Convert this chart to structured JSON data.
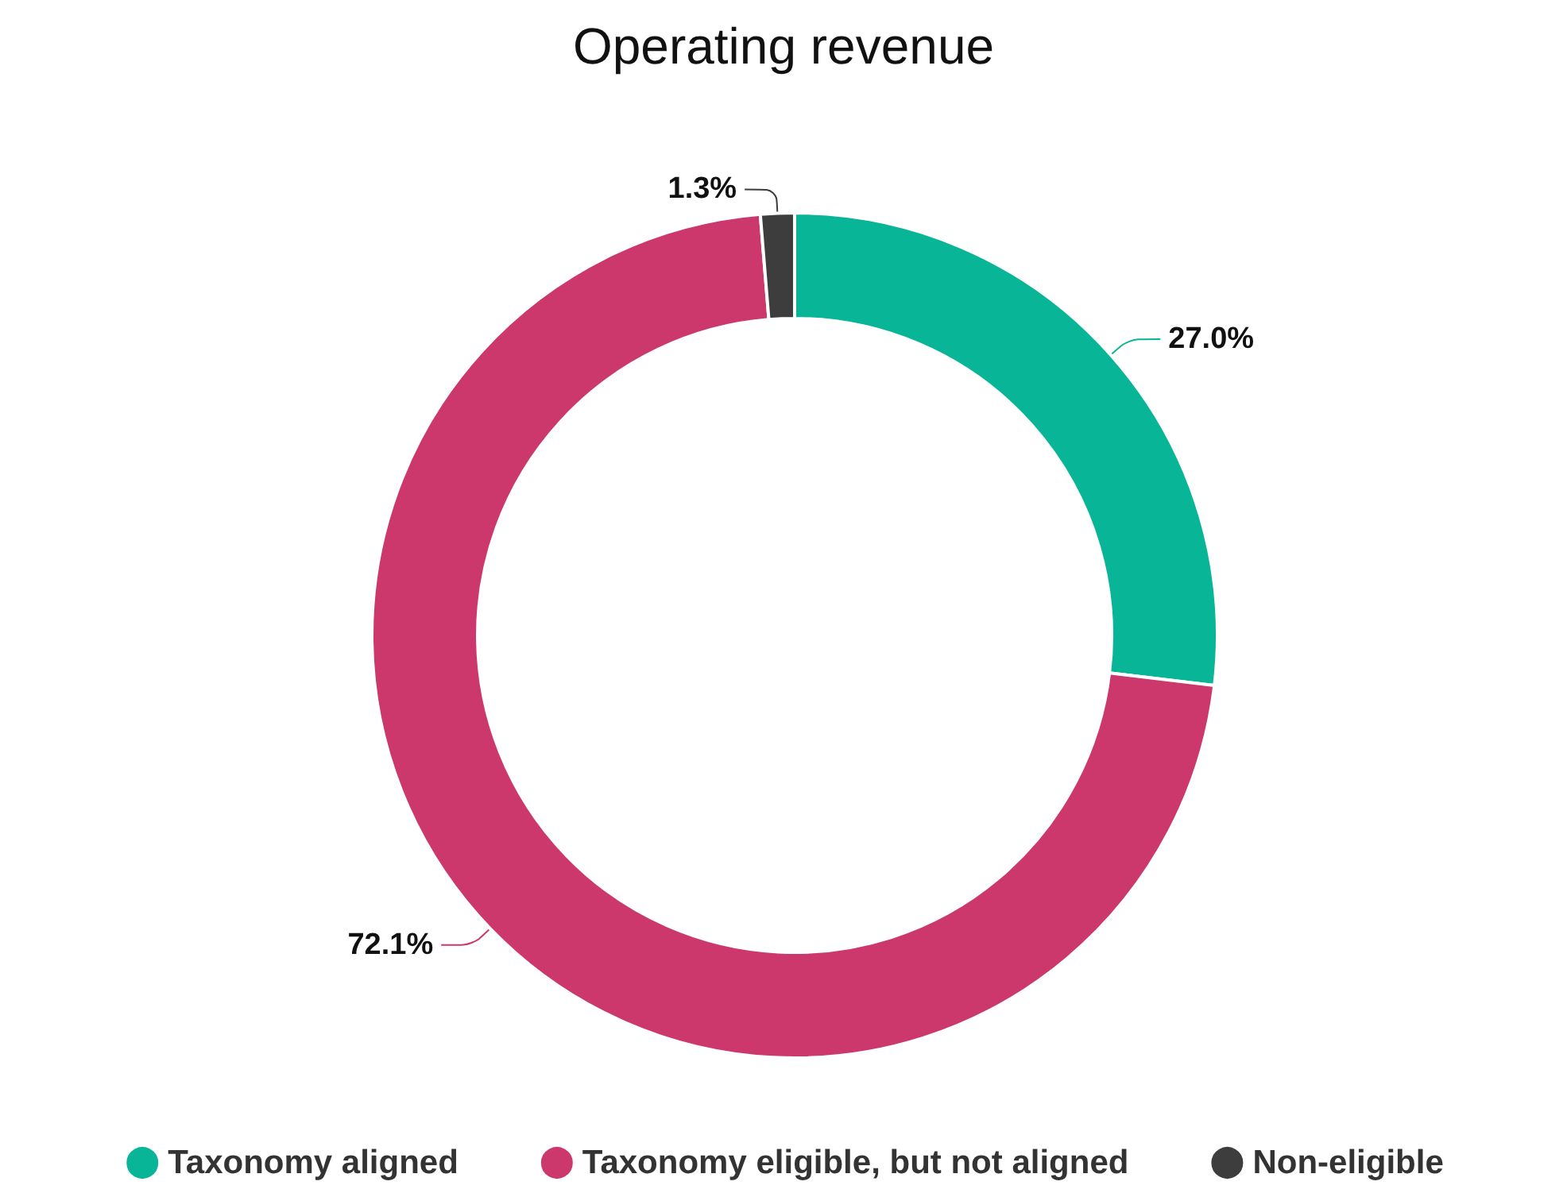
{
  "chart_data": {
    "type": "donut",
    "title": "Operating revenue",
    "categories": [
      "Taxonomy aligned",
      "Taxonomy eligible, but not aligned",
      "Non-eligible"
    ],
    "values": [
      27.0,
      72.1,
      1.3
    ],
    "value_labels": [
      "27.0%",
      "72.1%",
      "1.3%"
    ],
    "colors": [
      "#08b596",
      "#cc376c",
      "#3d3d3d"
    ],
    "legend": "bottom"
  }
}
